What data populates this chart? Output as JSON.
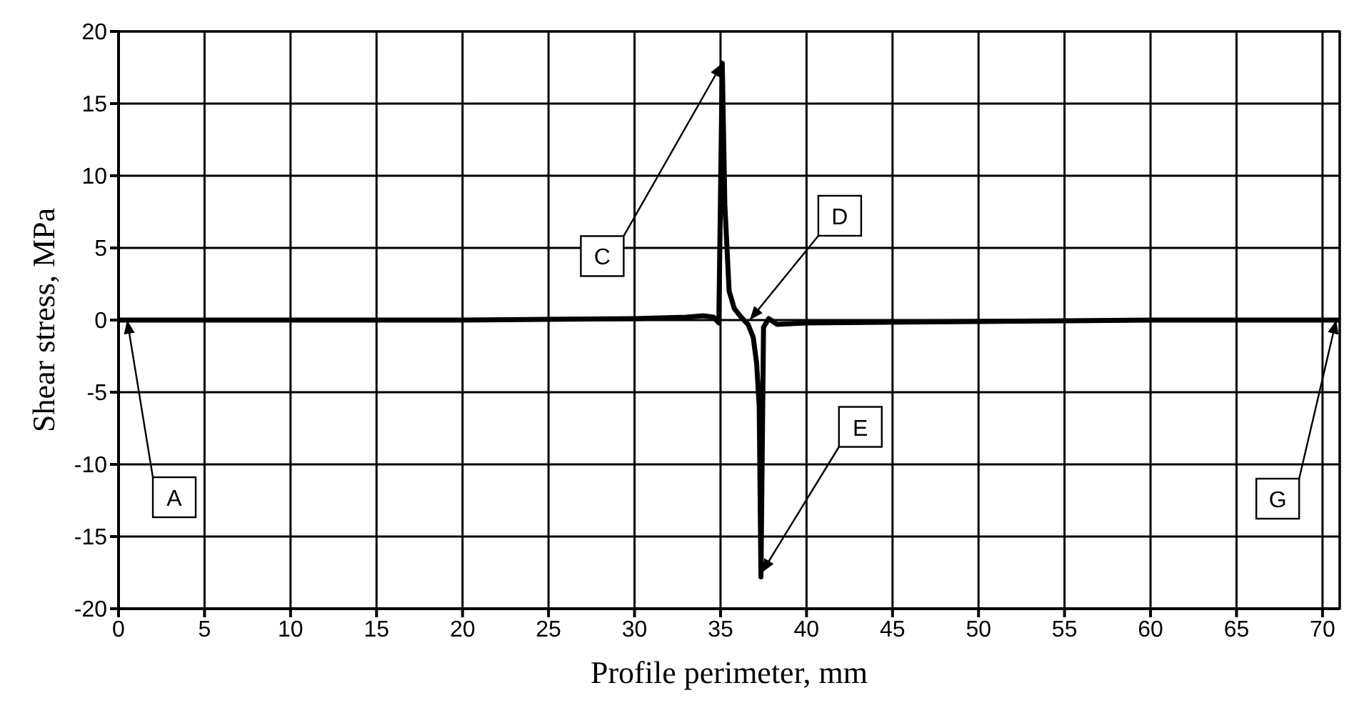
{
  "chart_data": {
    "type": "line",
    "xlabel": "Profile perimeter, mm",
    "ylabel": "Shear stress, MPa",
    "xlim": [
      0,
      71
    ],
    "xticks": [
      0,
      5,
      10,
      15,
      20,
      25,
      30,
      35,
      40,
      45,
      50,
      55,
      60,
      65,
      70
    ],
    "ylim": [
      -20,
      20
    ],
    "yticks": [
      -20,
      -15,
      -10,
      -5,
      0,
      5,
      10,
      15,
      20
    ],
    "grid": true,
    "marker": "none",
    "line_style": "solid",
    "series": [
      {
        "color": "#000000",
        "x": [
          0,
          10,
          20,
          30,
          33,
          34,
          34.6,
          34.9,
          35.1,
          35.25,
          35.5,
          35.8,
          36.2,
          36.6,
          36.9,
          37.1,
          37.25,
          37.35,
          37.5,
          37.8,
          38.3,
          40,
          50,
          60,
          71
        ],
        "values": [
          0,
          0,
          0,
          0.1,
          0.2,
          0.3,
          0.2,
          -0.2,
          17.8,
          8,
          2,
          0.8,
          0.2,
          -0.3,
          -1.2,
          -3,
          -6,
          -17.8,
          -0.5,
          0.1,
          -0.3,
          -0.2,
          -0.1,
          0,
          0
        ]
      }
    ],
    "annotations": [
      {
        "text": "A",
        "x": 0.5,
        "y": 0
      },
      {
        "text": "C",
        "x": 35.1,
        "y": 17.8
      },
      {
        "text": "D",
        "x": 36.7,
        "y": 0
      },
      {
        "text": "E",
        "x": 37.4,
        "y": -17.5
      },
      {
        "text": "G",
        "x": 70.8,
        "y": 0
      }
    ]
  }
}
